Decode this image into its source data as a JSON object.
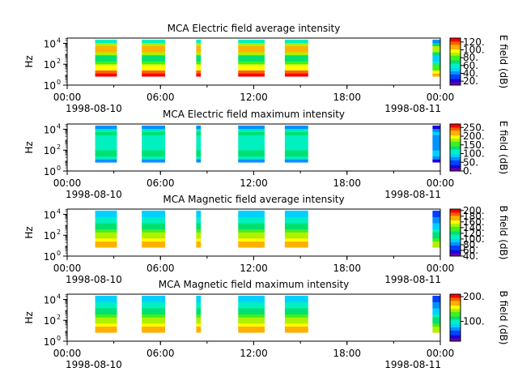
{
  "chart_data": [
    {
      "type": "heatmap",
      "title": "MCA  Electric field average intensity",
      "ylabel": "Hz",
      "zlabel": "E field (dB)",
      "xticks": [
        "00:00",
        "06:00",
        "12:00",
        "18:00",
        "00:00"
      ],
      "xdates": [
        "1998-08-10",
        "1998-08-11"
      ],
      "ytick_base": "10",
      "ytick_exponents": [
        "0",
        "2",
        "4"
      ],
      "xlim_hours": [
        0,
        24
      ],
      "ylim_log10_hz": [
        0,
        4.5
      ],
      "colorbar_ticks": [
        "20.",
        "40.",
        "60.",
        "80.",
        "100.",
        "120."
      ],
      "zlim": [
        10,
        130
      ],
      "colormap": "rainbow",
      "segments_hours": [
        [
          1.8,
          3.2
        ],
        [
          4.8,
          6.3
        ],
        [
          8.3,
          8.6
        ],
        [
          11.0,
          12.7
        ],
        [
          14.0,
          15.5
        ],
        [
          23.5,
          24.3
        ]
      ],
      "color_levels": [
        12,
        11,
        9,
        9,
        7,
        6,
        6,
        8,
        10,
        10,
        8,
        5
      ]
    },
    {
      "type": "heatmap",
      "title": "MCA  Electric field maximum intensity",
      "ylabel": "Hz",
      "zlabel": "E field (dB)",
      "xticks": [
        "00:00",
        "06:00",
        "12:00",
        "18:00",
        "00:00"
      ],
      "xdates": [
        "1998-08-10",
        "1998-08-11"
      ],
      "ytick_base": "10",
      "ytick_exponents": [
        "0",
        "2",
        "4"
      ],
      "xlim_hours": [
        0,
        24
      ],
      "ylim_log10_hz": [
        0,
        4.5
      ],
      "colorbar_ticks": [
        "0.",
        "50.",
        "100.",
        "150.",
        "200.",
        "250."
      ],
      "zlim": [
        0,
        270
      ],
      "colormap": "rainbow",
      "segments_hours": [
        [
          1.8,
          3.2
        ],
        [
          4.8,
          6.3
        ],
        [
          8.3,
          8.6
        ],
        [
          11.0,
          12.7
        ],
        [
          14.0,
          15.5
        ],
        [
          23.5,
          24.3
        ]
      ],
      "color_levels": [
        3,
        5,
        6,
        6,
        5,
        5,
        5,
        5,
        5,
        6,
        5,
        3
      ]
    },
    {
      "type": "heatmap",
      "title": "MCA  Magnetic field average intensity",
      "ylabel": "Hz",
      "zlabel": "B field (dB)",
      "xticks": [
        "00:00",
        "06:00",
        "12:00",
        "18:00",
        "00:00"
      ],
      "xdates": [
        "1998-08-10",
        "1998-08-11"
      ],
      "ytick_base": "10",
      "ytick_exponents": [
        "0",
        "2",
        "4"
      ],
      "xlim_hours": [
        0,
        24
      ],
      "ylim_log10_hz": [
        0,
        4.5
      ],
      "colorbar_ticks": [
        "40.",
        "60.",
        "80.",
        "100.",
        "120.",
        "140.",
        "160.",
        "180.",
        "200."
      ],
      "zlim": [
        40,
        205
      ],
      "colormap": "rainbow",
      "segments_hours": [
        [
          1.8,
          3.2
        ],
        [
          4.8,
          6.3
        ],
        [
          8.3,
          8.6
        ],
        [
          11.0,
          12.7
        ],
        [
          14.0,
          15.5
        ],
        [
          23.5,
          24.3
        ]
      ],
      "color_levels": [
        10,
        10,
        9,
        8,
        8,
        7,
        6,
        6,
        5,
        5,
        4,
        4
      ]
    },
    {
      "type": "heatmap",
      "title": "MCA  Magnetic field maximum intensity",
      "ylabel": "Hz",
      "zlabel": "B field (dB)",
      "xticks": [
        "00:00",
        "06:00",
        "12:00",
        "18:00",
        "00:00"
      ],
      "xdates": [
        "1998-08-10",
        "1998-08-11"
      ],
      "ytick_base": "10",
      "ytick_exponents": [
        "0",
        "2",
        "4"
      ],
      "xlim_hours": [
        0,
        24
      ],
      "ylim_log10_hz": [
        0,
        4.5
      ],
      "colorbar_ticks": [
        "100.",
        "200."
      ],
      "zlim": [
        20,
        210
      ],
      "colormap": "rainbow",
      "segments_hours": [
        [
          1.8,
          3.2
        ],
        [
          4.8,
          6.3
        ],
        [
          8.3,
          8.6
        ],
        [
          11.0,
          12.7
        ],
        [
          14.0,
          15.5
        ],
        [
          23.5,
          24.3
        ]
      ],
      "color_levels": [
        10,
        10,
        9,
        8,
        8,
        7,
        6,
        6,
        5,
        5,
        4,
        4
      ]
    }
  ]
}
